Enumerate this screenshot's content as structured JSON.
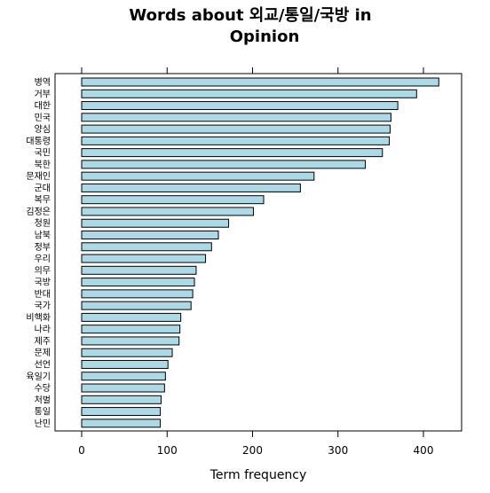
{
  "chart_data": {
    "type": "bar",
    "orientation": "horizontal",
    "title_line1": "Words about 외교/통일/국방 in",
    "title_line2": "Opinion",
    "xlabel": "Term frequency",
    "ylabel": "",
    "xlim": [
      -30,
      445
    ],
    "xticks": [
      0,
      100,
      200,
      300,
      400
    ],
    "bar_color": "#add8e6",
    "grid": false,
    "categories": [
      "병역",
      "거부",
      "대한",
      "민국",
      "양심",
      "대통령",
      "국민",
      "북한",
      "문재인",
      "군대",
      "복무",
      "김정은",
      "청원",
      "남북",
      "정부",
      "우리",
      "의무",
      "국방",
      "반대",
      "국가",
      "비핵화",
      "나라",
      "제주",
      "문제",
      "선언",
      "육일기",
      "수당",
      "처벌",
      "통일",
      "난민"
    ],
    "values": [
      418,
      392,
      370,
      362,
      361,
      360,
      352,
      332,
      272,
      256,
      213,
      201,
      172,
      160,
      152,
      145,
      134,
      132,
      130,
      128,
      116,
      115,
      114,
      106,
      101,
      98,
      97,
      93,
      92,
      92
    ]
  }
}
